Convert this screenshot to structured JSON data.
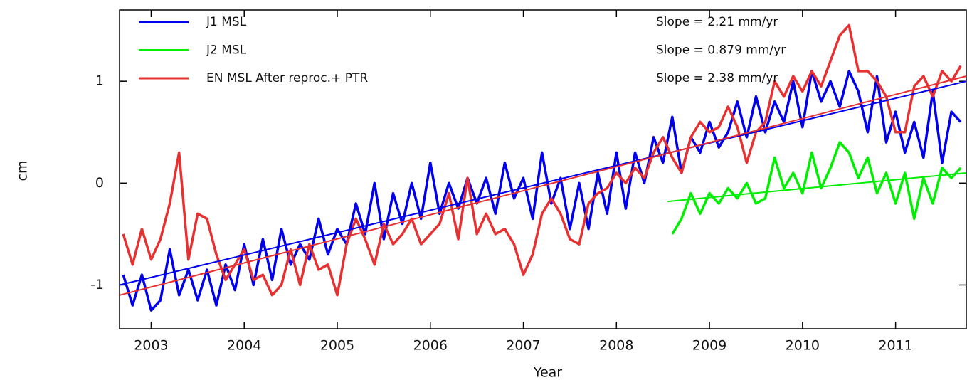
{
  "chart_data": {
    "type": "line",
    "xlabel": "Year",
    "ylabel": "cm",
    "xlim": [
      2002.66,
      2011.76
    ],
    "ylim": [
      -1.43,
      1.7
    ],
    "xticks": [
      2003,
      2004,
      2005,
      2006,
      2007,
      2008,
      2009,
      2010,
      2011
    ],
    "yticks": [
      -1,
      0,
      1
    ],
    "x": [
      2002.7,
      2002.8,
      2002.9,
      2003.0,
      2003.1,
      2003.2,
      2003.3,
      2003.4,
      2003.5,
      2003.6,
      2003.7,
      2003.8,
      2003.9,
      2004.0,
      2004.1,
      2004.2,
      2004.3,
      2004.4,
      2004.5,
      2004.6,
      2004.7,
      2004.8,
      2004.9,
      2005.0,
      2005.1,
      2005.2,
      2005.3,
      2005.4,
      2005.5,
      2005.6,
      2005.7,
      2005.8,
      2005.9,
      2006.0,
      2006.1,
      2006.2,
      2006.3,
      2006.4,
      2006.5,
      2006.6,
      2006.7,
      2006.8,
      2006.9,
      2007.0,
      2007.1,
      2007.2,
      2007.3,
      2007.4,
      2007.5,
      2007.6,
      2007.7,
      2007.8,
      2007.9,
      2008.0,
      2008.1,
      2008.2,
      2008.3,
      2008.4,
      2008.5,
      2008.6,
      2008.7,
      2008.8,
      2008.9,
      2009.0,
      2009.1,
      2009.2,
      2009.3,
      2009.4,
      2009.5,
      2009.6,
      2009.7,
      2009.8,
      2009.9,
      2010.0,
      2010.1,
      2010.2,
      2010.3,
      2010.4,
      2010.5,
      2010.6,
      2010.7,
      2010.8,
      2010.9,
      2011.0,
      2011.1,
      2011.2,
      2011.3,
      2011.4,
      2011.5,
      2011.6,
      2011.7
    ],
    "series": [
      {
        "name": "J1 MSL",
        "color": "#0000ee",
        "values": [
          -0.9,
          -1.2,
          -0.9,
          -1.25,
          -1.15,
          -0.65,
          -1.1,
          -0.85,
          -1.15,
          -0.85,
          -1.2,
          -0.8,
          -1.05,
          -0.6,
          -1.0,
          -0.55,
          -0.95,
          -0.45,
          -0.8,
          -0.6,
          -0.75,
          -0.35,
          -0.7,
          -0.45,
          -0.6,
          -0.2,
          -0.5,
          0.0,
          -0.55,
          -0.1,
          -0.4,
          0.0,
          -0.35,
          0.2,
          -0.3,
          0.0,
          -0.25,
          0.05,
          -0.2,
          0.05,
          -0.3,
          0.2,
          -0.15,
          0.05,
          -0.35,
          0.3,
          -0.2,
          0.05,
          -0.45,
          0.0,
          -0.45,
          0.1,
          -0.3,
          0.3,
          -0.25,
          0.3,
          0.0,
          0.45,
          0.2,
          0.65,
          0.1,
          0.45,
          0.3,
          0.6,
          0.35,
          0.5,
          0.8,
          0.45,
          0.85,
          0.5,
          0.8,
          0.6,
          1.0,
          0.55,
          1.1,
          0.8,
          1.0,
          0.75,
          1.1,
          0.9,
          0.5,
          1.05,
          0.4,
          0.7,
          0.3,
          0.6,
          0.25,
          0.9,
          0.2,
          0.7,
          0.6
        ]
      },
      {
        "name": "J2 MSL",
        "color": "#00ee00",
        "values": [
          null,
          null,
          null,
          null,
          null,
          null,
          null,
          null,
          null,
          null,
          null,
          null,
          null,
          null,
          null,
          null,
          null,
          null,
          null,
          null,
          null,
          null,
          null,
          null,
          null,
          null,
          null,
          null,
          null,
          null,
          null,
          null,
          null,
          null,
          null,
          null,
          null,
          null,
          null,
          null,
          null,
          null,
          null,
          null,
          null,
          null,
          null,
          null,
          null,
          null,
          null,
          null,
          null,
          null,
          null,
          null,
          null,
          null,
          null,
          -0.5,
          -0.35,
          -0.1,
          -0.3,
          -0.1,
          -0.2,
          -0.05,
          -0.15,
          0.0,
          -0.2,
          -0.15,
          0.25,
          -0.05,
          0.1,
          -0.1,
          0.3,
          -0.05,
          0.15,
          0.4,
          0.3,
          0.05,
          0.25,
          -0.1,
          0.1,
          -0.2,
          0.1,
          -0.35,
          0.05,
          -0.2,
          0.15,
          0.05,
          0.15
        ]
      },
      {
        "name": "EN MSL After reproc.+ PTR",
        "color": "#e83030",
        "values": [
          -0.5,
          -0.8,
          -0.45,
          -0.75,
          -0.55,
          -0.2,
          0.3,
          -0.75,
          -0.3,
          -0.35,
          -0.7,
          -0.95,
          -0.8,
          -0.65,
          -0.95,
          -0.9,
          -1.1,
          -1.0,
          -0.65,
          -1.0,
          -0.6,
          -0.85,
          -0.8,
          -1.1,
          -0.6,
          -0.35,
          -0.55,
          -0.8,
          -0.4,
          -0.6,
          -0.5,
          -0.35,
          -0.6,
          -0.5,
          -0.4,
          -0.1,
          -0.55,
          0.05,
          -0.5,
          -0.3,
          -0.5,
          -0.45,
          -0.6,
          -0.9,
          -0.7,
          -0.3,
          -0.15,
          -0.3,
          -0.55,
          -0.6,
          -0.2,
          -0.1,
          -0.05,
          0.1,
          0.0,
          0.15,
          0.05,
          0.3,
          0.45,
          0.25,
          0.1,
          0.45,
          0.6,
          0.5,
          0.55,
          0.75,
          0.55,
          0.2,
          0.5,
          0.6,
          1.0,
          0.85,
          1.05,
          0.9,
          1.1,
          0.95,
          1.2,
          1.45,
          1.55,
          1.1,
          1.1,
          1.0,
          0.85,
          0.5,
          0.5,
          0.95,
          1.05,
          0.85,
          1.1,
          1.0,
          1.15
        ]
      }
    ],
    "trend_lines": [
      {
        "color": "#0000ee",
        "x": [
          2002.66,
          2011.76
        ],
        "values": [
          -1.0,
          1.0
        ]
      },
      {
        "color": "#00ee00",
        "x": [
          2008.55,
          2011.76
        ],
        "values": [
          -0.18,
          0.1
        ]
      },
      {
        "color": "#e83030",
        "x": [
          2002.66,
          2011.76
        ],
        "values": [
          -1.1,
          1.05
        ]
      }
    ],
    "annotations": [
      "Slope = 2.21 mm/yr",
      "Slope = 0.879 mm/yr",
      "Slope = 2.38 mm/yr"
    ]
  }
}
